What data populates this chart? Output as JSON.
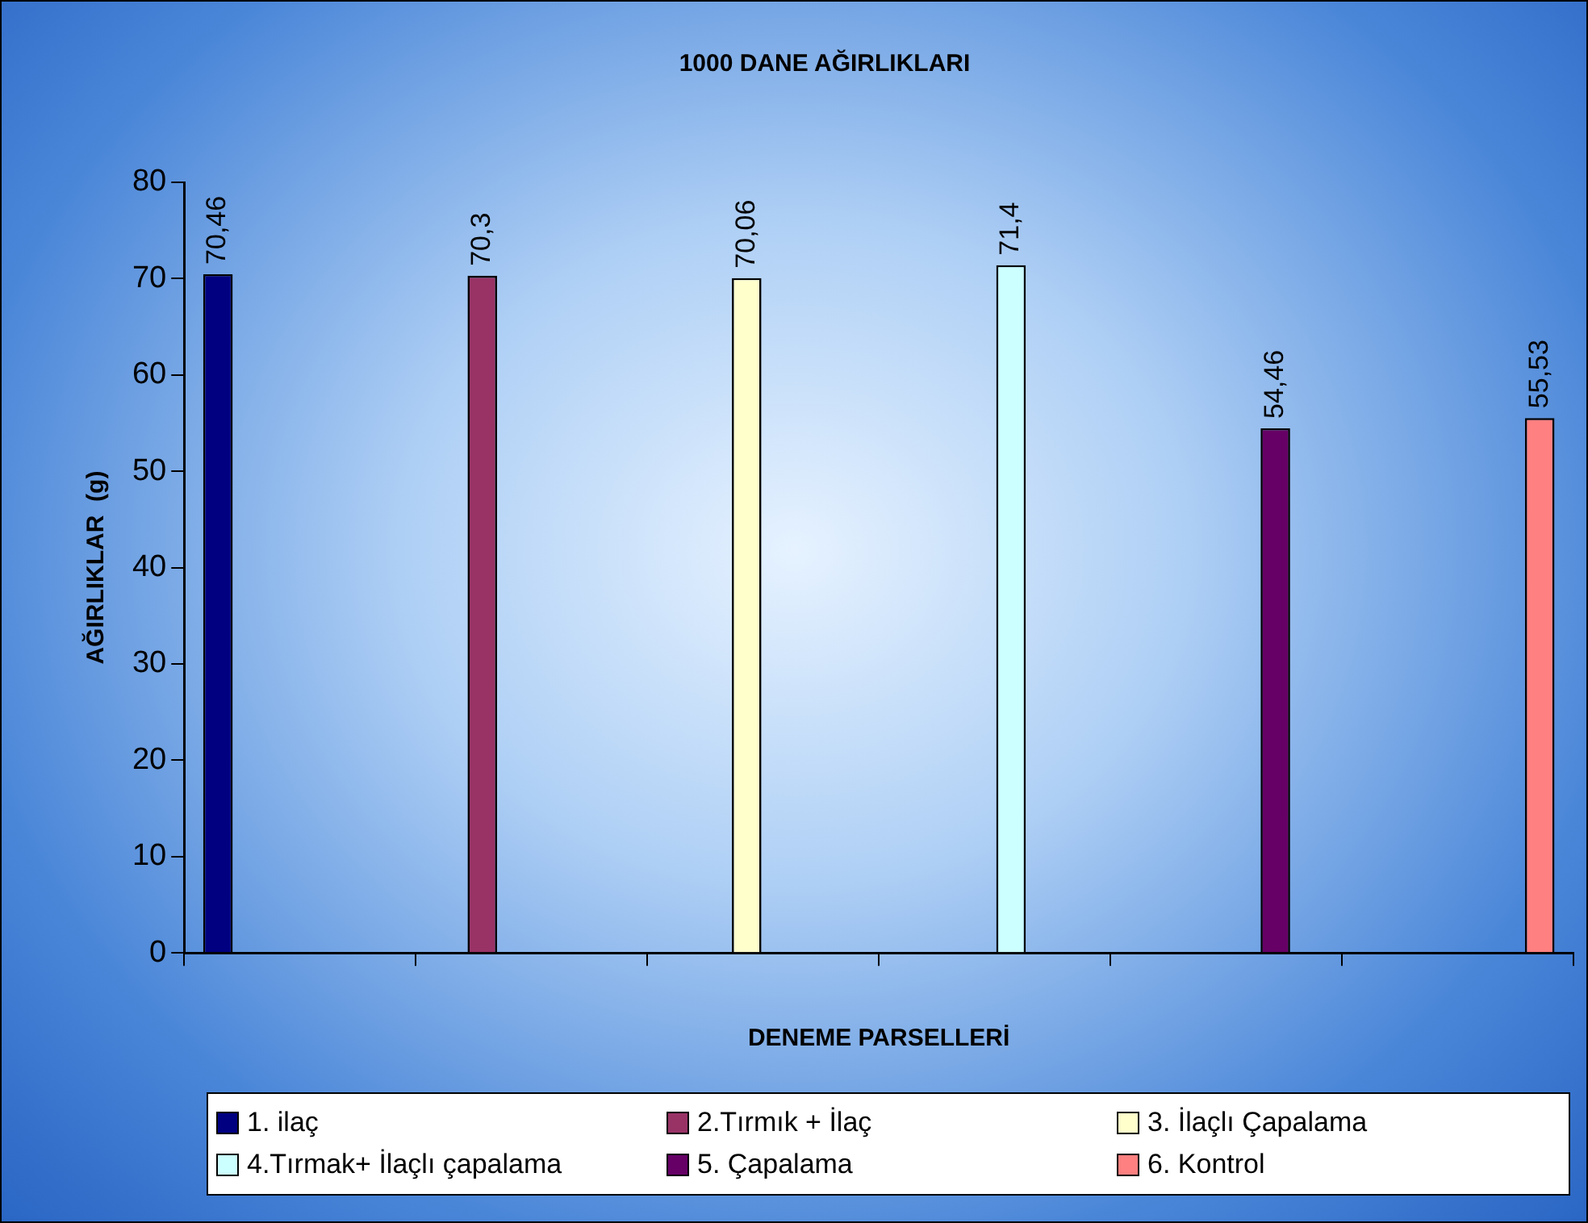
{
  "chart_data": {
    "type": "bar",
    "title": "1000 DANE AĞIRLIKLARI",
    "xlabel": "DENEME PARSELLERİ",
    "ylabel": "AĞIRLIKLAR  (g)",
    "categories": [
      null,
      null,
      null,
      null,
      null,
      null
    ],
    "series": [
      {
        "name": "1. ilaç",
        "color": "#000080",
        "values": [
          70.46,
          null,
          null,
          null,
          null,
          null
        ],
        "value_labels": [
          "70,46",
          null,
          null,
          null,
          null,
          null
        ]
      },
      {
        "name": "2.Tırmık + İlaç",
        "color": "#993366",
        "values": [
          null,
          70.3,
          null,
          null,
          null,
          null
        ],
        "value_labels": [
          null,
          "70,3",
          null,
          null,
          null,
          null
        ]
      },
      {
        "name": "3. İlaçlı Çapalama",
        "color": "#ffffcc",
        "values": [
          null,
          null,
          70.06,
          null,
          null,
          null
        ],
        "value_labels": [
          null,
          null,
          "70,06",
          null,
          null,
          null
        ]
      },
      {
        "name": "4.Tırmak+ İlaçlı çapalama",
        "color": "#ccffff",
        "values": [
          null,
          null,
          null,
          71.4,
          null,
          null
        ],
        "value_labels": [
          null,
          null,
          null,
          "71,4",
          null,
          null
        ]
      },
      {
        "name": "5. Çapalama",
        "color": "#660066",
        "values": [
          null,
          null,
          null,
          null,
          54.46,
          null
        ],
        "value_labels": [
          null,
          null,
          null,
          null,
          "54,46",
          null
        ]
      },
      {
        "name": "6. Kontrol",
        "color": "#ff8080",
        "values": [
          null,
          null,
          null,
          null,
          null,
          55.53
        ],
        "value_labels": [
          null,
          null,
          null,
          null,
          null,
          "55,53"
        ]
      }
    ],
    "ylim": [
      0,
      80
    ],
    "yticks": [
      0,
      10,
      20,
      30,
      40,
      50,
      60,
      70,
      80
    ],
    "grid": false,
    "legend": "bottom"
  }
}
